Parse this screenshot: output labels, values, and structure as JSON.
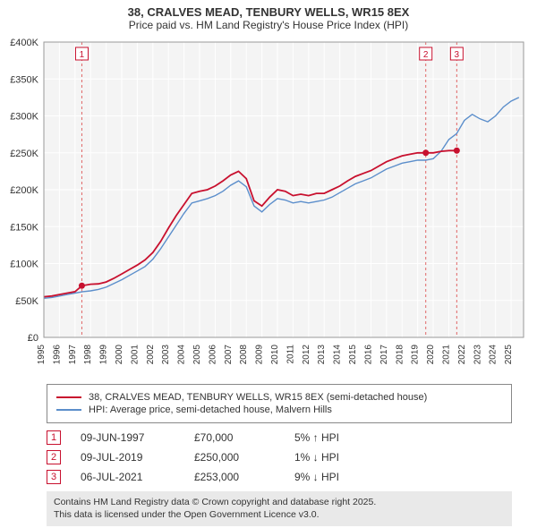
{
  "title_line1": "38, CRALVES MEAD, TENBURY WELLS, WR15 8EX",
  "title_line2": "Price paid vs. HM Land Registry's House Price Index (HPI)",
  "chart": {
    "type": "line",
    "background_color": "#ffffff",
    "plot_bg": "#f4f4f4",
    "grid_color": "#ffffff",
    "series1_color": "#c8102e",
    "series2_color": "#5b8ecb",
    "marker_border": "#c8102e",
    "vline_color": "#e06666",
    "line_width_s1": 1.8,
    "line_width_s2": 1.4,
    "x_min": 1995,
    "x_max": 2025.8,
    "x_ticks": [
      1995,
      1996,
      1997,
      1998,
      1999,
      2000,
      2001,
      2002,
      2003,
      2004,
      2005,
      2006,
      2007,
      2008,
      2009,
      2010,
      2011,
      2012,
      2013,
      2014,
      2015,
      2016,
      2017,
      2018,
      2019,
      2020,
      2021,
      2022,
      2023,
      2024,
      2025
    ],
    "y_min": 0,
    "y_max": 400000,
    "y_tick_step": 50000,
    "y_tick_labels": [
      "£0",
      "£50K",
      "£100K",
      "£150K",
      "£200K",
      "£250K",
      "£300K",
      "£350K",
      "£400K"
    ],
    "series1": [
      [
        1995,
        55000
      ],
      [
        1995.5,
        56000
      ],
      [
        1996,
        58000
      ],
      [
        1996.5,
        60000
      ],
      [
        1997,
        62000
      ],
      [
        1997.45,
        70000
      ],
      [
        1998,
        72000
      ],
      [
        1998.5,
        72500
      ],
      [
        1999,
        75000
      ],
      [
        1999.5,
        80000
      ],
      [
        2000,
        86000
      ],
      [
        2000.5,
        92000
      ],
      [
        2001,
        98000
      ],
      [
        2001.5,
        105000
      ],
      [
        2002,
        115000
      ],
      [
        2002.5,
        130000
      ],
      [
        2003,
        148000
      ],
      [
        2003.5,
        165000
      ],
      [
        2004,
        180000
      ],
      [
        2004.5,
        195000
      ],
      [
        2005,
        198000
      ],
      [
        2005.5,
        200000
      ],
      [
        2006,
        205000
      ],
      [
        2006.5,
        212000
      ],
      [
        2007,
        220000
      ],
      [
        2007.5,
        225000
      ],
      [
        2008,
        215000
      ],
      [
        2008.5,
        185000
      ],
      [
        2009,
        178000
      ],
      [
        2009.5,
        190000
      ],
      [
        2010,
        200000
      ],
      [
        2010.5,
        198000
      ],
      [
        2011,
        192000
      ],
      [
        2011.5,
        194000
      ],
      [
        2012,
        192000
      ],
      [
        2012.5,
        195000
      ],
      [
        2013,
        195000
      ],
      [
        2013.5,
        200000
      ],
      [
        2014,
        205000
      ],
      [
        2014.5,
        212000
      ],
      [
        2015,
        218000
      ],
      [
        2015.5,
        222000
      ],
      [
        2016,
        226000
      ],
      [
        2016.5,
        232000
      ],
      [
        2017,
        238000
      ],
      [
        2017.5,
        242000
      ],
      [
        2018,
        246000
      ],
      [
        2018.5,
        248000
      ],
      [
        2019,
        250000
      ],
      [
        2019.52,
        250000
      ],
      [
        2020,
        250000
      ],
      [
        2020.5,
        252000
      ],
      [
        2021,
        253000
      ],
      [
        2021.5,
        253000
      ]
    ],
    "series2": [
      [
        1995,
        53000
      ],
      [
        1995.5,
        54000
      ],
      [
        1996,
        56000
      ],
      [
        1996.5,
        58000
      ],
      [
        1997,
        60000
      ],
      [
        1997.5,
        62000
      ],
      [
        1998,
        63000
      ],
      [
        1998.5,
        65000
      ],
      [
        1999,
        68000
      ],
      [
        1999.5,
        73000
      ],
      [
        2000,
        78000
      ],
      [
        2000.5,
        84000
      ],
      [
        2001,
        90000
      ],
      [
        2001.5,
        96000
      ],
      [
        2002,
        106000
      ],
      [
        2002.5,
        120000
      ],
      [
        2003,
        136000
      ],
      [
        2003.5,
        152000
      ],
      [
        2004,
        168000
      ],
      [
        2004.5,
        182000
      ],
      [
        2005,
        185000
      ],
      [
        2005.5,
        188000
      ],
      [
        2006,
        192000
      ],
      [
        2006.5,
        198000
      ],
      [
        2007,
        206000
      ],
      [
        2007.5,
        212000
      ],
      [
        2008,
        204000
      ],
      [
        2008.5,
        178000
      ],
      [
        2009,
        170000
      ],
      [
        2009.5,
        180000
      ],
      [
        2010,
        188000
      ],
      [
        2010.5,
        186000
      ],
      [
        2011,
        182000
      ],
      [
        2011.5,
        184000
      ],
      [
        2012,
        182000
      ],
      [
        2012.5,
        184000
      ],
      [
        2013,
        186000
      ],
      [
        2013.5,
        190000
      ],
      [
        2014,
        196000
      ],
      [
        2014.5,
        202000
      ],
      [
        2015,
        208000
      ],
      [
        2015.5,
        212000
      ],
      [
        2016,
        216000
      ],
      [
        2016.5,
        222000
      ],
      [
        2017,
        228000
      ],
      [
        2017.5,
        232000
      ],
      [
        2018,
        236000
      ],
      [
        2018.5,
        238000
      ],
      [
        2019,
        240000
      ],
      [
        2019.5,
        240000
      ],
      [
        2020,
        242000
      ],
      [
        2020.5,
        252000
      ],
      [
        2021,
        268000
      ],
      [
        2021.5,
        276000
      ],
      [
        2022,
        294000
      ],
      [
        2022.5,
        302000
      ],
      [
        2023,
        296000
      ],
      [
        2023.5,
        292000
      ],
      [
        2024,
        300000
      ],
      [
        2024.5,
        312000
      ],
      [
        2025,
        320000
      ],
      [
        2025.5,
        325000
      ]
    ],
    "sale_points": [
      {
        "x": 1997.44,
        "y": 70000
      },
      {
        "x": 2019.52,
        "y": 250000
      },
      {
        "x": 2021.51,
        "y": 253000
      }
    ],
    "event_markers": [
      {
        "label": "1",
        "x": 1997.44
      },
      {
        "label": "2",
        "x": 2019.52
      },
      {
        "label": "3",
        "x": 2021.51
      }
    ]
  },
  "legend": {
    "s1_label": "38, CRALVES MEAD, TENBURY WELLS, WR15 8EX (semi-detached house)",
    "s2_label": "HPI: Average price, semi-detached house, Malvern Hills"
  },
  "events": [
    {
      "num": "1",
      "date": "09-JUN-1997",
      "price": "£70,000",
      "hpi": "5% ↑ HPI"
    },
    {
      "num": "2",
      "date": "09-JUL-2019",
      "price": "£250,000",
      "hpi": "1% ↓ HPI"
    },
    {
      "num": "3",
      "date": "06-JUL-2021",
      "price": "£253,000",
      "hpi": "9% ↓ HPI"
    }
  ],
  "attribution_line1": "Contains HM Land Registry data © Crown copyright and database right 2025.",
  "attribution_line2": "This data is licensed under the Open Government Licence v3.0."
}
